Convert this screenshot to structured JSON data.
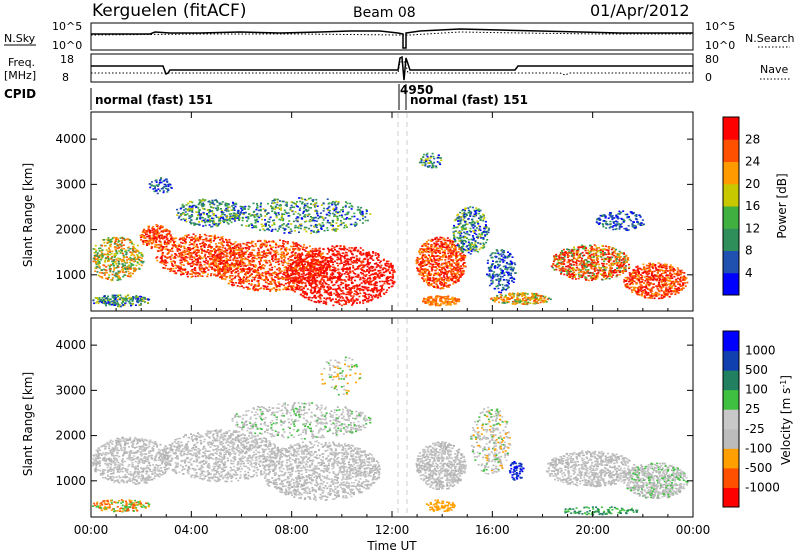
{
  "header": {
    "station": "Kerguelen (fitACF)",
    "beam": "Beam 08",
    "date": "01/Apr/2012"
  },
  "top_panels": {
    "nsky_label": "N.Sky",
    "nsearch_label": "N.Search",
    "freq_label_1": "Freq.",
    "freq_label_2": "[MHz]",
    "nave_label": "Nave",
    "cpid_label": "CPID",
    "nsky_ticks": [
      "10^5",
      "10^0"
    ],
    "nsearch_ticks": [
      "10^5",
      "10^0"
    ],
    "freq_ticks": [
      "18",
      "8"
    ],
    "nave_ticks": [
      "80",
      "0"
    ],
    "cpid_segments": [
      {
        "label": "normal (fast) 151",
        "start_hour": 0.0,
        "end_hour": 12.55
      },
      {
        "label": "4950",
        "start_hour": 12.55,
        "end_hour": 12.75
      },
      {
        "label": "normal (fast) 151",
        "start_hour": 12.75,
        "end_hour": 24.0
      }
    ]
  },
  "chart_data": [
    {
      "type": "heatmap",
      "quantity": "Power",
      "ylabel": "Slant Range [km]",
      "xlabel": "",
      "colorbar_label": "Power [dB]",
      "colorbar_ticks": [
        "28",
        "24",
        "20",
        "16",
        "12",
        "8",
        "4"
      ],
      "colorbar_colors": [
        "#0000ff",
        "#2050b0",
        "#2f8f5a",
        "#40b040",
        "#c8c800",
        "#ff9a00",
        "#ff5000",
        "#ff0000"
      ],
      "y_ticks": [
        "4000",
        "3000",
        "2000",
        "1000"
      ],
      "ylim": [
        200,
        4600
      ],
      "xlim": [
        0,
        24
      ]
    },
    {
      "type": "heatmap",
      "quantity": "Velocity",
      "ylabel": "Slant Range [km]",
      "xlabel": "Time UT",
      "colorbar_label": "Velocity [m s",
      "colorbar_label_sup": "-1",
      "colorbar_label_end": "]",
      "colorbar_ticks": [
        "1000",
        "500",
        "100",
        "25",
        "-25",
        "-100",
        "-500",
        "-1000"
      ],
      "colorbar_colors": [
        "#ff0000",
        "#ff5000",
        "#ffa000",
        "#bcbcbc",
        "#c8c8c8",
        "#40c040",
        "#208060",
        "#1040b0",
        "#0000ff"
      ],
      "y_ticks": [
        "4000",
        "3000",
        "2000",
        "1000"
      ],
      "x_ticks": [
        "00:00",
        "04:00",
        "08:00",
        "12:00",
        "16:00",
        "20:00",
        "00:00"
      ],
      "ylim": [
        200,
        4600
      ],
      "xlim": [
        0,
        24
      ]
    }
  ]
}
